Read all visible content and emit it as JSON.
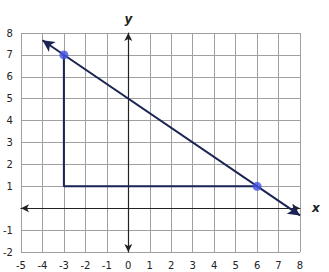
{
  "chart_data": {
    "type": "line",
    "xlabel": "x",
    "ylabel": "y",
    "xlim": [
      -5,
      8
    ],
    "ylim": [
      -2,
      8
    ],
    "xticks": [
      -5,
      -4,
      -3,
      -2,
      -1,
      0,
      1,
      2,
      3,
      4,
      5,
      6,
      7,
      8
    ],
    "yticks": [
      -2,
      -1,
      1,
      2,
      3,
      4,
      5,
      6,
      7,
      8
    ],
    "grid": true,
    "series": [
      {
        "type": "line",
        "x": [
          -4,
          8
        ],
        "values": [
          7.67,
          -0.33
        ],
        "color": "#1b2352",
        "marker": "arrow"
      },
      {
        "type": "line",
        "x": [
          -3,
          -3,
          6
        ],
        "values": [
          7,
          1,
          1
        ],
        "color": "#1b2352"
      },
      {
        "type": "scatter",
        "x": [
          -3,
          6
        ],
        "values": [
          7,
          1
        ],
        "color": "#4353e6",
        "marker": "circle"
      }
    ]
  }
}
